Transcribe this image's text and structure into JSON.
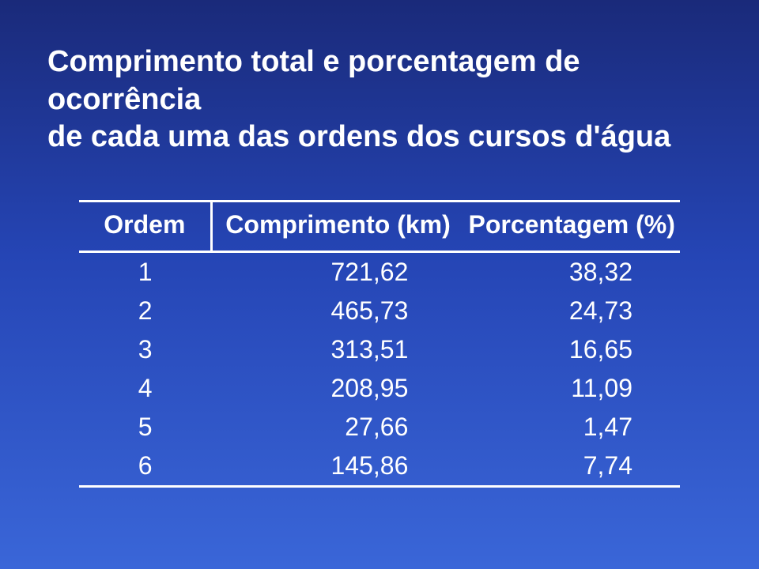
{
  "title_line1": "Comprimento total e porcentagem de ocorrência",
  "title_line2": "de cada uma das ordens dos cursos d'água",
  "table": {
    "headers": {
      "ordem": "Ordem",
      "comp": "Comprimento (km)",
      "pct": "Porcentagem (%)"
    },
    "rows": [
      {
        "ordem": "1",
        "comp": "721,62",
        "pct": "38,32"
      },
      {
        "ordem": "2",
        "comp": "465,73",
        "pct": "24,73"
      },
      {
        "ordem": "3",
        "comp": "313,51",
        "pct": "16,65"
      },
      {
        "ordem": "4",
        "comp": "208,95",
        "pct": "11,09"
      },
      {
        "ordem": "5",
        "comp": "27,66",
        "pct": "1,47"
      },
      {
        "ordem": "6",
        "comp": "145,86",
        "pct": "7,74"
      }
    ]
  },
  "style": {
    "background_gradient_top": "#1a2a7a",
    "background_gradient_mid": "#2545b5",
    "background_gradient_bottom": "#3a66d8",
    "text_color": "#ffffff",
    "rule_color": "#ffffff",
    "title_fontsize": 38,
    "cell_fontsize": 32,
    "font_family": "Arial"
  }
}
